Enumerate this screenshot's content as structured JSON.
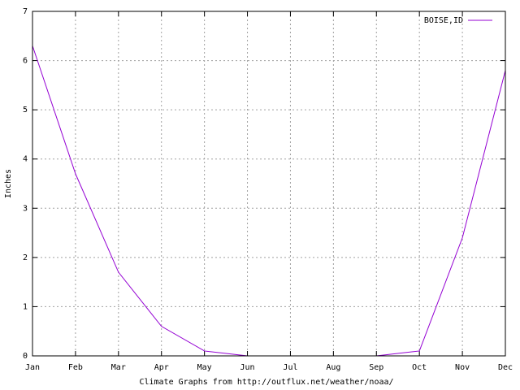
{
  "chart_data": {
    "type": "line",
    "x_label": "Climate Graphs from http://outflux.net/weather/noaa/",
    "y_label": "Inches",
    "categories": [
      "Jan",
      "Feb",
      "Mar",
      "Apr",
      "May",
      "Jun",
      "Jul",
      "Aug",
      "Sep",
      "Oct",
      "Nov",
      "Dec"
    ],
    "series": [
      {
        "name": "BOISE,ID",
        "color": "#9400d3",
        "values": [
          6.3,
          3.7,
          1.7,
          0.6,
          0.1,
          0,
          0,
          0,
          0,
          0.1,
          2.4,
          5.8
        ]
      }
    ],
    "ylim": [
      0,
      7
    ],
    "yticks": [
      0,
      1,
      2,
      3,
      4,
      5,
      6,
      7
    ],
    "grid": true,
    "legend": "top-right"
  }
}
